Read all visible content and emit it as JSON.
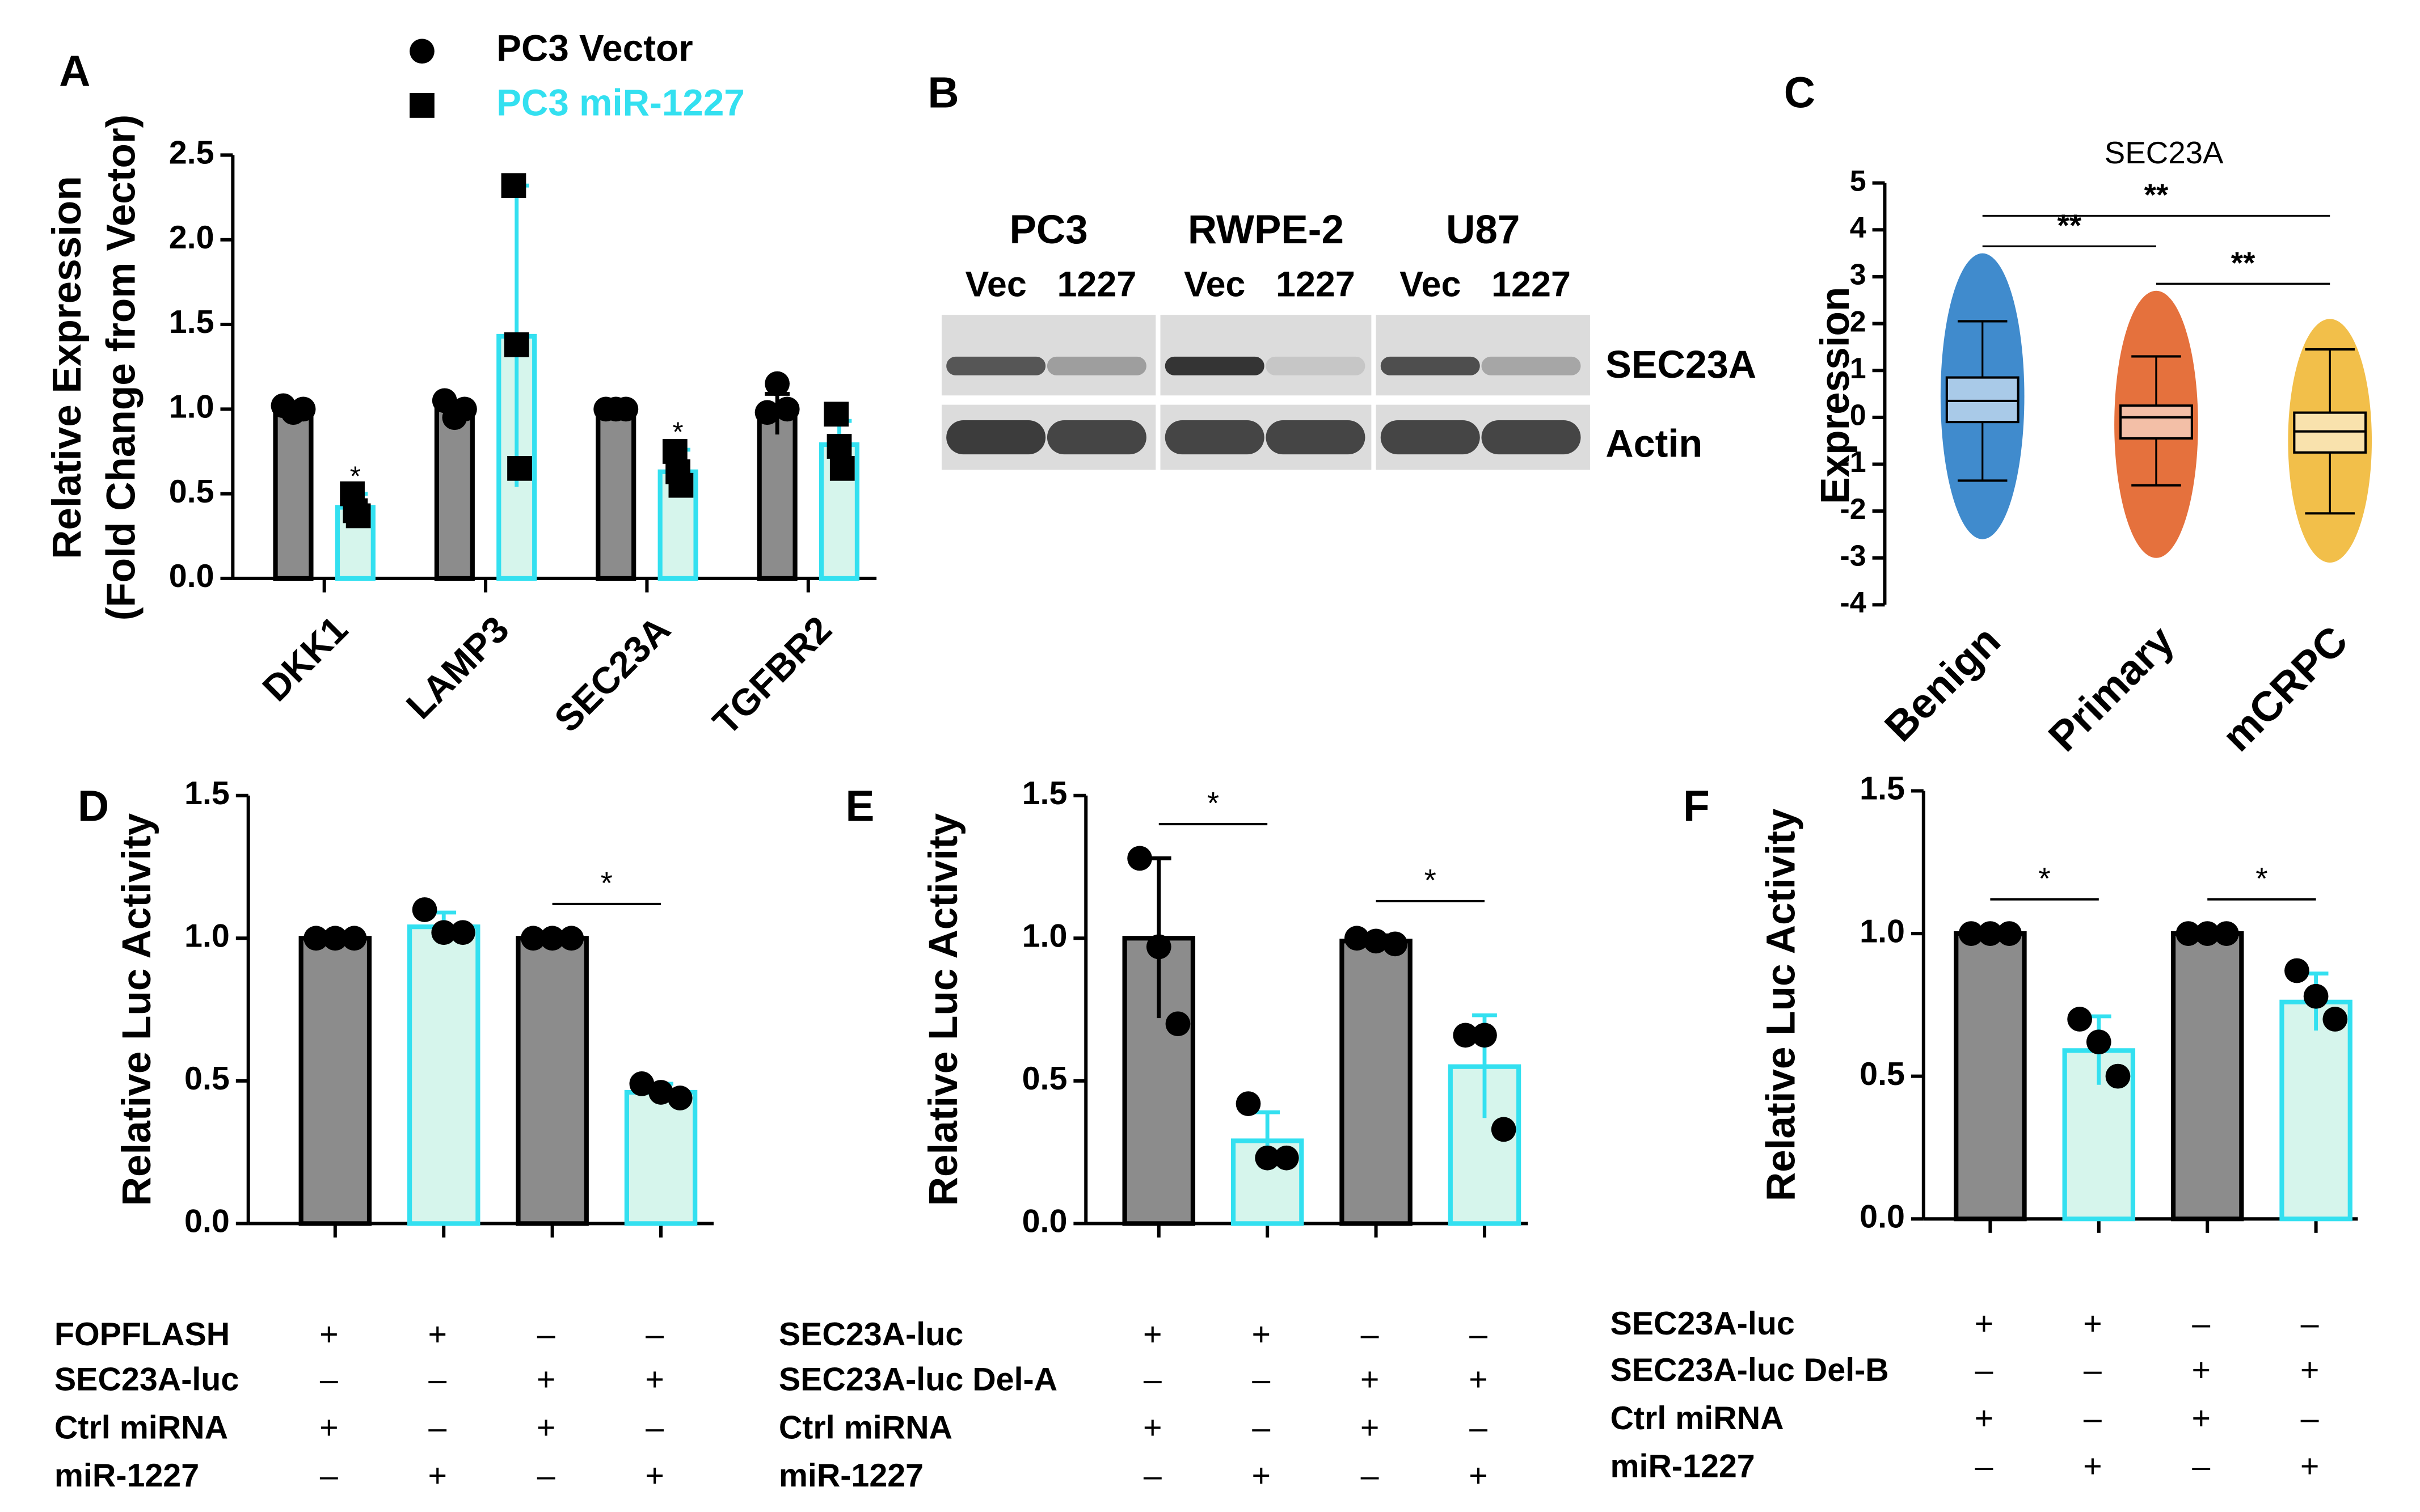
{
  "chart_data": [
    {
      "panel": "A",
      "type": "bar",
      "y_label": [
        "Relative Expression",
        "(Fold Change from Vector)"
      ],
      "categories": [
        "DKK1",
        "LAMP3",
        "SEC23A",
        "TGFBR2"
      ],
      "series": [
        {
          "name": "PC3 Vector",
          "color": "#8c8c8c",
          "edge": "#000000",
          "marker": "circle",
          "label_color": "#000000",
          "values": [
            1.0,
            1.0,
            1.0,
            0.97
          ],
          "errors": [
            0.03,
            0.05,
            0.02,
            0.12
          ],
          "points": [
            [
              1.02,
              0.98,
              1.0
            ],
            [
              1.05,
              0.95,
              1.0
            ],
            [
              1.0,
              1.0,
              1.0
            ],
            [
              0.98,
              1.15,
              1.0
            ]
          ]
        },
        {
          "name": "PC3 miR-1227",
          "color": "#d6f5ec",
          "edge": "#33e0f0",
          "marker": "square",
          "label_color": "#33e0f0",
          "values": [
            0.42,
            1.43,
            0.63,
            0.79
          ],
          "errors": [
            0.08,
            0.89,
            0.13,
            0.14
          ],
          "points": [
            [
              0.5,
              0.4,
              0.37
            ],
            [
              2.32,
              1.38,
              0.65
            ],
            [
              0.75,
              0.63,
              0.55
            ],
            [
              0.97,
              0.78,
              0.65
            ]
          ]
        }
      ],
      "annotations": [
        {
          "category": 0,
          "series": 1,
          "label": "*"
        },
        {
          "category": 2,
          "series": 1,
          "label": "*"
        }
      ],
      "ylim": [
        0,
        2.5
      ],
      "yticks": [
        {
          "value": 0,
          "label": "0.0"
        },
        {
          "value": 0.5,
          "label": "0.5"
        },
        {
          "value": 1,
          "label": "1.0"
        },
        {
          "value": 1.5,
          "label": "1.5"
        },
        {
          "value": 2,
          "label": "2.0"
        },
        {
          "value": 2.5,
          "label": "2.5"
        }
      ]
    },
    {
      "panel": "B",
      "type": "blot",
      "groups": [
        "PC3",
        "RWPE-2",
        "U87"
      ],
      "lanes": [
        "Vec",
        "1227"
      ],
      "rows": [
        "SEC23A",
        "Actin"
      ],
      "band_intensity": [
        [
          [
            0.75,
            0.35
          ],
          [
            0.95,
            0.12
          ],
          [
            0.8,
            0.3
          ]
        ],
        [
          [
            0.9,
            0.85
          ],
          [
            0.85,
            0.85
          ],
          [
            0.85,
            0.85
          ]
        ]
      ]
    },
    {
      "panel": "C",
      "type": "box",
      "title": "SEC23A",
      "y_label": "Expression",
      "categories": [
        "Benign",
        "Primary",
        "mCRPC"
      ],
      "colors": [
        "#1f77c4",
        "#e0581b",
        "#f0b42a"
      ],
      "q1": [
        -0.1,
        -0.45,
        -0.75
      ],
      "median": [
        0.35,
        0.0,
        -0.3
      ],
      "q3": [
        0.85,
        0.25,
        0.1
      ],
      "whisker_low": [
        -1.35,
        -1.45,
        -2.05
      ],
      "whisker_high": [
        2.05,
        1.3,
        1.45
      ],
      "range_low": [
        -2.6,
        -3.0,
        -3.1
      ],
      "range_high": [
        3.5,
        2.7,
        2.1
      ],
      "significance": [
        {
          "from": 0,
          "to": 2,
          "label": "**"
        },
        {
          "from": 0,
          "to": 1,
          "label": "**"
        },
        {
          "from": 1,
          "to": 2,
          "label": "**"
        }
      ],
      "ylim": [
        -4,
        5
      ],
      "yticks": [
        -4,
        -3,
        -2,
        -1,
        0,
        1,
        2,
        3,
        4,
        5
      ]
    },
    {
      "panel": "D",
      "type": "bar",
      "y_label": "Relative Luc Activity",
      "values": [
        1.0,
        1.04,
        1.0,
        0.46
      ],
      "errors": [
        0.0,
        0.05,
        0.0,
        0.03
      ],
      "points": [
        [
          1.0,
          1.0,
          1.0
        ],
        [
          1.1,
          1.02,
          1.02
        ],
        [
          1.0,
          1.0,
          1.0
        ],
        [
          0.49,
          0.46,
          0.44
        ]
      ],
      "colors": [
        "#8c8c8c",
        "#d6f5ec",
        "#8c8c8c",
        "#d6f5ec"
      ],
      "edge_colors": [
        "#000000",
        "#33e0f0",
        "#000000",
        "#33e0f0"
      ],
      "significance": [
        {
          "from": 2,
          "to": 3,
          "label": "*"
        }
      ],
      "conditions": [
        {
          "label": "FOPFLASH",
          "signs": [
            "+",
            "+",
            "–",
            "–"
          ]
        },
        {
          "label": "SEC23A-luc",
          "signs": [
            "–",
            "–",
            "+",
            "+"
          ]
        },
        {
          "label": "Ctrl miRNA",
          "signs": [
            "+",
            "–",
            "+",
            "–"
          ]
        },
        {
          "label": "miR-1227",
          "signs": [
            "–",
            "+",
            "–",
            "+"
          ]
        }
      ],
      "ylim": [
        0,
        1.5
      ],
      "yticks": [
        {
          "value": 0,
          "label": "0.0"
        },
        {
          "value": 0.5,
          "label": "0.5"
        },
        {
          "value": 1,
          "label": "1.0"
        },
        {
          "value": 1.5,
          "label": "1.5"
        }
      ]
    },
    {
      "panel": "E",
      "type": "bar",
      "y_label": "Relative Luc Activity",
      "values": [
        1.0,
        0.29,
        0.99,
        0.55
      ],
      "errors": [
        0.28,
        0.1,
        0.02,
        0.18
      ],
      "points": [
        [
          1.28,
          0.97,
          0.7
        ],
        [
          0.42,
          0.23,
          0.23
        ],
        [
          1.0,
          0.99,
          0.98
        ],
        [
          0.66,
          0.66,
          0.33
        ]
      ],
      "colors": [
        "#8c8c8c",
        "#d6f5ec",
        "#8c8c8c",
        "#d6f5ec"
      ],
      "edge_colors": [
        "#000000",
        "#33e0f0",
        "#000000",
        "#33e0f0"
      ],
      "significance": [
        {
          "from": 0,
          "to": 1,
          "label": "*"
        },
        {
          "from": 2,
          "to": 3,
          "label": "*"
        }
      ],
      "conditions": [
        {
          "label": "SEC23A-luc",
          "signs": [
            "+",
            "+",
            "–",
            "–"
          ]
        },
        {
          "label": "SEC23A-luc Del-A",
          "signs": [
            "–",
            "–",
            "+",
            "+"
          ]
        },
        {
          "label": "Ctrl miRNA",
          "signs": [
            "+",
            "–",
            "+",
            "–"
          ]
        },
        {
          "label": "miR-1227",
          "signs": [
            "–",
            "+",
            "–",
            "+"
          ]
        }
      ],
      "ylim": [
        0,
        1.5
      ],
      "yticks": [
        {
          "value": 0,
          "label": "0.0"
        },
        {
          "value": 0.5,
          "label": "0.5"
        },
        {
          "value": 1,
          "label": "1.0"
        },
        {
          "value": 1.5,
          "label": "1.5"
        }
      ]
    },
    {
      "panel": "F",
      "type": "bar",
      "y_label": "Relative Luc Activity",
      "values": [
        1.0,
        0.59,
        1.0,
        0.76
      ],
      "errors": [
        0.0,
        0.12,
        0.0,
        0.1
      ],
      "points": [
        [
          1.0,
          1.0,
          1.0
        ],
        [
          0.7,
          0.62,
          0.5
        ],
        [
          1.0,
          1.0,
          1.0
        ],
        [
          0.87,
          0.78,
          0.7
        ]
      ],
      "colors": [
        "#8c8c8c",
        "#d6f5ec",
        "#8c8c8c",
        "#d6f5ec"
      ],
      "edge_colors": [
        "#000000",
        "#33e0f0",
        "#000000",
        "#33e0f0"
      ],
      "significance": [
        {
          "from": 0,
          "to": 1,
          "label": "*"
        },
        {
          "from": 2,
          "to": 3,
          "label": "*"
        }
      ],
      "conditions": [
        {
          "label": "SEC23A-luc",
          "signs": [
            "+",
            "+",
            "–",
            "–"
          ]
        },
        {
          "label": "SEC23A-luc Del-B",
          "signs": [
            "–",
            "–",
            "+",
            "+"
          ]
        },
        {
          "label": "Ctrl miRNA",
          "signs": [
            "+",
            "–",
            "+",
            "–"
          ]
        },
        {
          "label": "miR-1227",
          "signs": [
            "–",
            "+",
            "–",
            "+"
          ]
        }
      ],
      "ylim": [
        0,
        1.5
      ],
      "yticks": [
        {
          "value": 0,
          "label": "0.0"
        },
        {
          "value": 0.5,
          "label": "0.5"
        },
        {
          "value": 1,
          "label": "1.0"
        },
        {
          "value": 1.5,
          "label": "1.5"
        }
      ]
    }
  ]
}
